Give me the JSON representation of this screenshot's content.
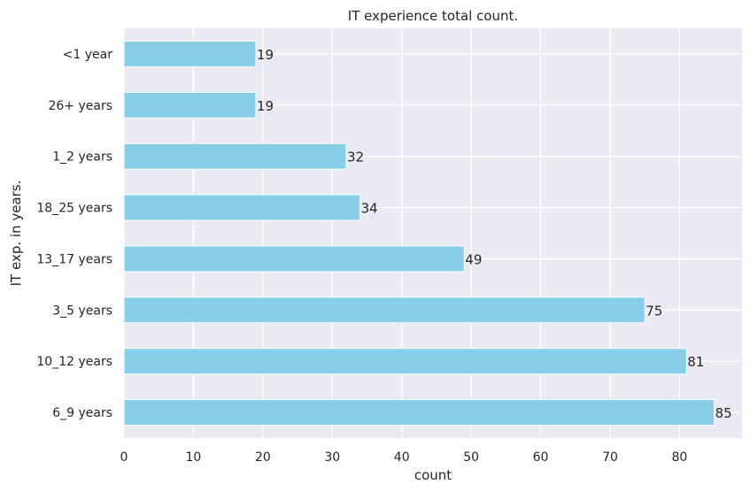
{
  "chart_data": {
    "type": "bar",
    "orientation": "horizontal",
    "title": "IT experience total count.",
    "xlabel": "count",
    "ylabel": "IT exp. in years.",
    "categories": [
      "<1 year",
      "26+ years",
      "1_2 years",
      "18_25 years",
      "13_17 years",
      "3_5 years",
      "10_12 years",
      "6_9 years"
    ],
    "values": [
      19,
      19,
      32,
      34,
      49,
      75,
      81,
      85
    ],
    "xlim": [
      0,
      89
    ],
    "xticks": [
      0,
      10,
      20,
      30,
      40,
      50,
      60,
      70,
      80
    ],
    "grid": true,
    "bar_color": "#87ceeb",
    "background_color": "#eaeaf2",
    "grid_color": "#ffffff"
  }
}
